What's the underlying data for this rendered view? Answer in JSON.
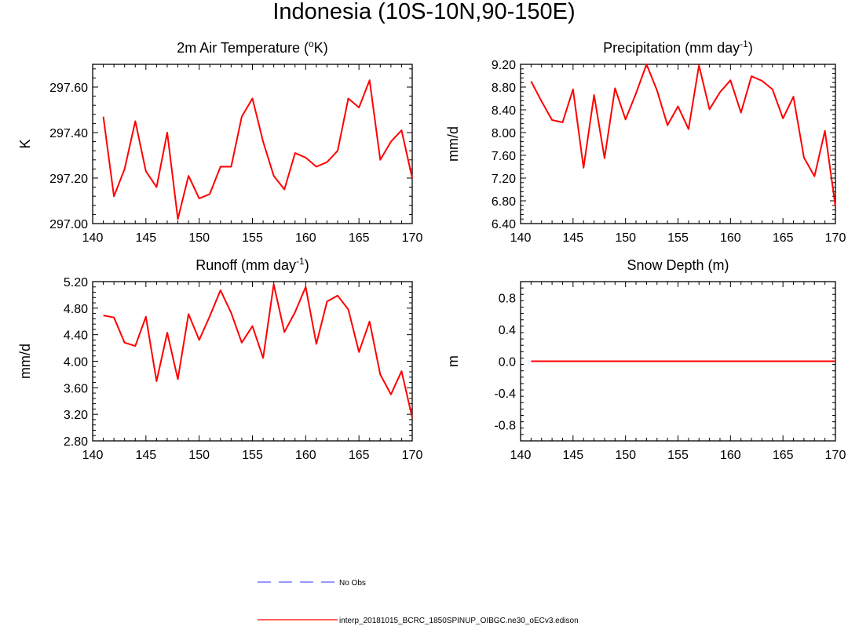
{
  "title": "Indonesia (10S-10N,90-150E)",
  "legend": [
    {
      "label": "No Obs",
      "color": "#5a5aff",
      "style": "dashed"
    },
    {
      "label": "interp_20181015_BCRC_1850SPINUP_OIBGC.ne30_oECv3.edison",
      "color": "#ff0000",
      "style": "solid"
    }
  ],
  "colors": {
    "series": "#ff0000",
    "axis": "#000000"
  },
  "chart_data": [
    {
      "type": "line",
      "title_main": "2m Air Temperature (",
      "title_sup": "o",
      "title_end": "K)",
      "ylabel": "K",
      "xlim": [
        140,
        170
      ],
      "ylim": [
        297.0,
        297.7
      ],
      "xticks": [
        140,
        145,
        150,
        155,
        160,
        165,
        170
      ],
      "yticks": [
        297.0,
        297.2,
        297.4,
        297.6
      ],
      "ytick_labels": [
        "297.00",
        "297.20",
        "297.40",
        "297.60"
      ],
      "x": [
        141,
        142,
        143,
        144,
        145,
        146,
        147,
        148,
        149,
        150,
        151,
        152,
        153,
        154,
        155,
        156,
        157,
        158,
        159,
        160,
        161,
        162,
        163,
        164,
        165,
        166,
        167,
        168,
        169,
        170
      ],
      "values": [
        297.47,
        297.12,
        297.24,
        297.45,
        297.23,
        297.16,
        297.4,
        297.02,
        297.21,
        297.11,
        297.13,
        297.25,
        297.25,
        297.47,
        297.55,
        297.36,
        297.21,
        297.15,
        297.31,
        297.29,
        297.25,
        297.27,
        297.32,
        297.55,
        297.51,
        297.63,
        297.28,
        297.36,
        297.41,
        297.2
      ]
    },
    {
      "type": "line",
      "title_main": "Precipitation (mm day",
      "title_sup": "-1",
      "title_end": ")",
      "ylabel": "mm/d",
      "xlim": [
        140,
        170
      ],
      "ylim": [
        6.4,
        9.2
      ],
      "xticks": [
        140,
        145,
        150,
        155,
        160,
        165,
        170
      ],
      "yticks": [
        6.4,
        6.8,
        7.2,
        7.6,
        8.0,
        8.4,
        8.8,
        9.2
      ],
      "ytick_labels": [
        "6.40",
        "6.80",
        "7.20",
        "7.60",
        "8.00",
        "8.40",
        "8.80",
        "9.20"
      ],
      "x": [
        141,
        142,
        143,
        144,
        145,
        146,
        147,
        148,
        149,
        150,
        151,
        152,
        153,
        154,
        155,
        156,
        157,
        158,
        159,
        160,
        161,
        162,
        163,
        164,
        165,
        166,
        167,
        168,
        169,
        170
      ],
      "values": [
        8.9,
        8.55,
        8.22,
        8.18,
        8.76,
        7.38,
        8.66,
        7.55,
        8.78,
        8.23,
        8.69,
        9.2,
        8.74,
        8.13,
        8.46,
        8.06,
        9.18,
        8.41,
        8.71,
        8.92,
        8.35,
        8.99,
        8.91,
        8.76,
        8.25,
        8.63,
        7.56,
        7.23,
        8.03,
        6.7
      ]
    },
    {
      "type": "line",
      "title_main": "Runoff (mm day",
      "title_sup": "-1",
      "title_end": ")",
      "ylabel": "mm/d",
      "xlim": [
        140,
        170
      ],
      "ylim": [
        2.8,
        5.2
      ],
      "xticks": [
        140,
        145,
        150,
        155,
        160,
        165,
        170
      ],
      "yticks": [
        2.8,
        3.2,
        3.6,
        4.0,
        4.4,
        4.8,
        5.2
      ],
      "ytick_labels": [
        "2.80",
        "3.20",
        "3.60",
        "4.00",
        "4.40",
        "4.80",
        "5.20"
      ],
      "x": [
        141,
        142,
        143,
        144,
        145,
        146,
        147,
        148,
        149,
        150,
        151,
        152,
        153,
        154,
        155,
        156,
        157,
        158,
        159,
        160,
        161,
        162,
        163,
        164,
        165,
        166,
        167,
        168,
        169,
        170
      ],
      "values": [
        4.69,
        4.66,
        4.28,
        4.23,
        4.67,
        3.7,
        4.43,
        3.73,
        4.71,
        4.32,
        4.68,
        5.07,
        4.73,
        4.28,
        4.53,
        4.05,
        5.16,
        4.44,
        4.74,
        5.12,
        4.26,
        4.9,
        4.99,
        4.78,
        4.14,
        4.6,
        3.8,
        3.5,
        3.85,
        3.15
      ]
    },
    {
      "type": "line",
      "title_main": "Snow Depth (m)",
      "title_sup": "",
      "title_end": "",
      "ylabel": "m",
      "xlim": [
        140,
        170
      ],
      "ylim": [
        -1.0,
        1.0
      ],
      "xticks": [
        140,
        145,
        150,
        155,
        160,
        165,
        170
      ],
      "yticks": [
        -0.8,
        -0.4,
        0.0,
        0.4,
        0.8
      ],
      "ytick_labels": [
        "-0.8",
        "-0.4",
        "0.0",
        "0.4",
        "0.8"
      ],
      "x": [
        141,
        170
      ],
      "values": [
        0.0,
        0.0
      ]
    }
  ]
}
